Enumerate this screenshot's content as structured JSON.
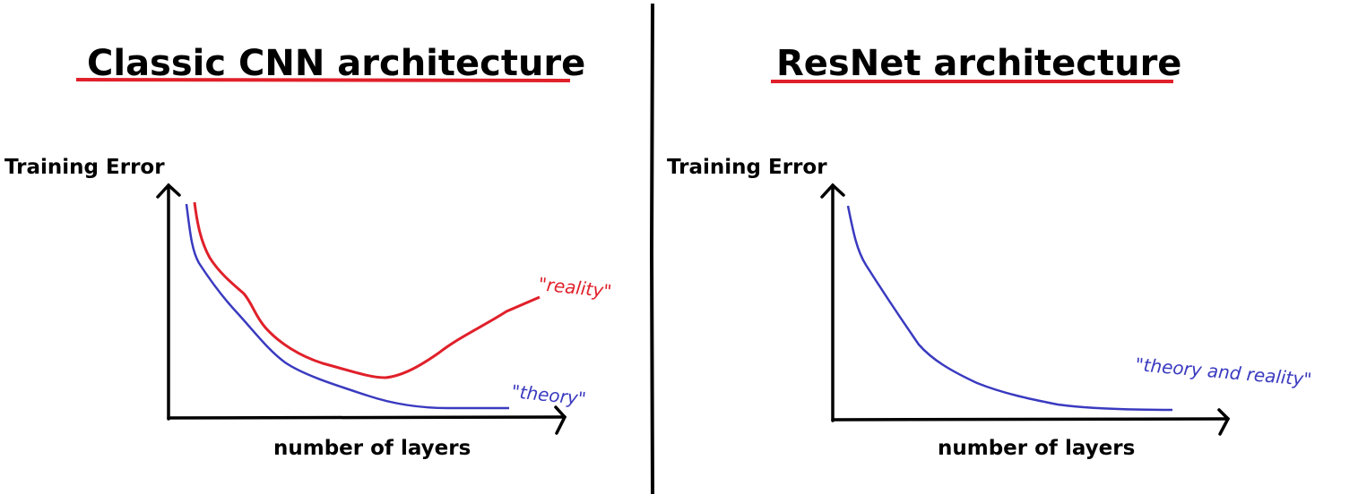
{
  "colors": {
    "axes": "#000000",
    "divider": "#000000",
    "underline": "#e0202a",
    "theory": "#3a3ac0",
    "reality": "#e0202a"
  },
  "left_panel": {
    "title": "Classic CNN architecture",
    "y_label": "Training Error",
    "x_label": "number of layers",
    "reality_label": "\"reality\"",
    "theory_label": "\"theory\""
  },
  "right_panel": {
    "title": "ResNet architecture",
    "y_label": "Training Error",
    "x_label": "number of layers",
    "curve_label": "\"theory and reality\""
  }
}
